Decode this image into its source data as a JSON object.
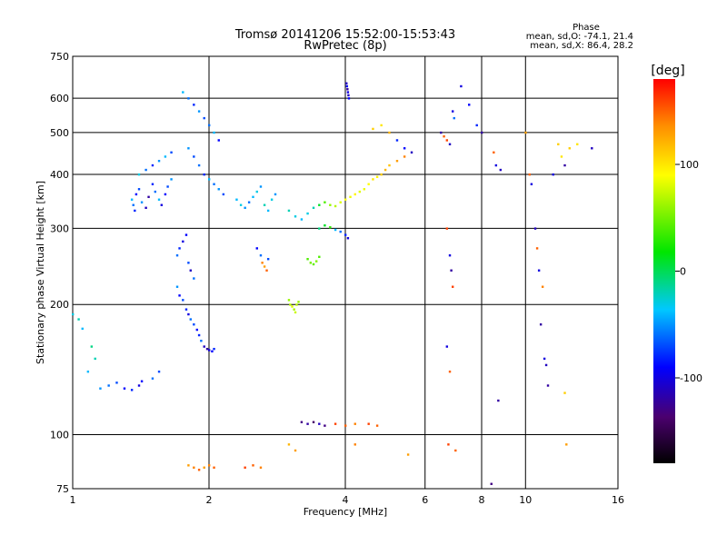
{
  "chart_data": {
    "type": "scatter",
    "title_line1": "Tromsø 20141206 15:52:00-15:53:43",
    "title_line2": "RwPretec (8p)",
    "xlabel": "Frequency [MHz]",
    "ylabel": "Stationary phase Virtual Height [km]",
    "x_scale": "log",
    "y_scale": "log",
    "xlim": [
      1,
      16
    ],
    "ylim": [
      75,
      750
    ],
    "x_ticks": [
      1,
      2,
      4,
      6,
      8,
      10,
      16
    ],
    "x_tick_labels": [
      "1",
      "2",
      "4",
      "6",
      "8",
      "10",
      "16"
    ],
    "y_ticks": [
      75,
      100,
      200,
      300,
      400,
      500,
      600,
      750
    ],
    "y_tick_labels": [
      "75",
      "100",
      "200",
      "300",
      "400",
      "500",
      "600",
      "750"
    ],
    "grid": true,
    "stats": {
      "title": "Phase",
      "line_o": "mean, sd,O: -74.1, 21.4",
      "line_x": "mean, sd,X:  86.4, 28.2"
    },
    "colorbar": {
      "label": "[deg]",
      "range": [
        -180,
        180
      ],
      "ticks": [
        100,
        0,
        -100
      ],
      "tick_labels": [
        "100",
        "0",
        "-100"
      ]
    },
    "series": [
      {
        "points": [
          [
            1.0,
            190,
            -30
          ],
          [
            1.03,
            185,
            -20
          ],
          [
            1.05,
            176,
            -40
          ],
          [
            1.1,
            160,
            -10
          ],
          [
            1.12,
            150,
            -20
          ],
          [
            1.08,
            140,
            -40
          ],
          [
            1.15,
            128,
            -50
          ],
          [
            1.2,
            130,
            -60
          ],
          [
            1.25,
            132,
            -70
          ],
          [
            1.3,
            128,
            -90
          ],
          [
            1.35,
            127,
            -80
          ],
          [
            1.4,
            130,
            -100
          ],
          [
            1.42,
            133,
            -90
          ],
          [
            1.5,
            135,
            -60
          ],
          [
            1.55,
            140,
            -70
          ]
        ]
      },
      {
        "points": [
          [
            1.35,
            350,
            -40
          ],
          [
            1.36,
            340,
            -60
          ],
          [
            1.37,
            330,
            -80
          ],
          [
            1.38,
            360,
            -90
          ],
          [
            1.4,
            370,
            -70
          ],
          [
            1.42,
            345,
            -50
          ],
          [
            1.45,
            335,
            -110
          ],
          [
            1.47,
            355,
            -120
          ],
          [
            1.5,
            380,
            -80
          ],
          [
            1.52,
            365,
            -60
          ],
          [
            1.55,
            350,
            -40
          ],
          [
            1.57,
            340,
            -100
          ],
          [
            1.6,
            360,
            -90
          ],
          [
            1.62,
            375,
            -70
          ],
          [
            1.65,
            390,
            -50
          ],
          [
            1.4,
            400,
            -30
          ],
          [
            1.45,
            410,
            -60
          ],
          [
            1.5,
            420,
            -80
          ],
          [
            1.55,
            430,
            -50
          ],
          [
            1.6,
            440,
            -40
          ],
          [
            1.65,
            450,
            -70
          ]
        ]
      },
      {
        "points": [
          [
            1.7,
            260,
            -60
          ],
          [
            1.72,
            270,
            -80
          ],
          [
            1.75,
            280,
            -100
          ],
          [
            1.78,
            290,
            -90
          ],
          [
            1.8,
            250,
            -70
          ],
          [
            1.82,
            240,
            -110
          ],
          [
            1.85,
            230,
            -60
          ],
          [
            1.7,
            220,
            -50
          ],
          [
            1.72,
            210,
            -90
          ],
          [
            1.75,
            205,
            -70
          ],
          [
            1.78,
            195,
            -80
          ],
          [
            1.8,
            190,
            -100
          ],
          [
            1.82,
            185,
            -60
          ],
          [
            1.85,
            180,
            -70
          ],
          [
            1.88,
            175,
            -90
          ],
          [
            1.9,
            170,
            -80
          ],
          [
            1.92,
            165,
            -60
          ],
          [
            1.95,
            160,
            -110
          ],
          [
            1.98,
            158,
            -120
          ],
          [
            2.0,
            157,
            -100
          ],
          [
            2.03,
            156,
            -90
          ],
          [
            2.05,
            158,
            -80
          ]
        ]
      },
      {
        "points": [
          [
            1.75,
            620,
            -40
          ],
          [
            1.8,
            600,
            -60
          ],
          [
            1.85,
            580,
            -80
          ],
          [
            1.9,
            560,
            -50
          ],
          [
            1.95,
            540,
            -70
          ],
          [
            2.0,
            520,
            -60
          ],
          [
            2.05,
            500,
            -40
          ],
          [
            2.1,
            480,
            -90
          ],
          [
            1.8,
            460,
            -50
          ],
          [
            1.85,
            440,
            -70
          ],
          [
            1.9,
            420,
            -60
          ],
          [
            1.95,
            400,
            -80
          ],
          [
            2.0,
            390,
            -40
          ],
          [
            2.05,
            380,
            -60
          ],
          [
            2.1,
            370,
            -50
          ],
          [
            2.15,
            360,
            -70
          ]
        ]
      },
      {
        "points": [
          [
            2.3,
            350,
            -40
          ],
          [
            2.35,
            340,
            -30
          ],
          [
            2.4,
            335,
            -50
          ],
          [
            2.45,
            345,
            -60
          ],
          [
            2.5,
            355,
            -40
          ],
          [
            2.55,
            365,
            -30
          ],
          [
            2.6,
            375,
            -50
          ],
          [
            2.65,
            340,
            -20
          ],
          [
            2.7,
            330,
            -40
          ],
          [
            2.75,
            350,
            -30
          ],
          [
            2.8,
            360,
            -50
          ]
        ]
      },
      {
        "points": [
          [
            2.55,
            270,
            -90
          ],
          [
            2.6,
            260,
            -60
          ],
          [
            2.62,
            250,
            140
          ],
          [
            2.65,
            245,
            130
          ],
          [
            2.68,
            240,
            150
          ],
          [
            2.7,
            255,
            -70
          ]
        ]
      },
      {
        "points": [
          [
            3.0,
            205,
            60
          ],
          [
            3.02,
            200,
            70
          ],
          [
            3.05,
            198,
            80
          ],
          [
            3.08,
            195,
            65
          ],
          [
            3.1,
            192,
            75
          ],
          [
            3.12,
            200,
            70
          ],
          [
            3.15,
            203,
            60
          ]
        ]
      },
      {
        "points": [
          [
            3.3,
            255,
            40
          ],
          [
            3.35,
            250,
            50
          ],
          [
            3.4,
            248,
            45
          ],
          [
            3.45,
            252,
            55
          ],
          [
            3.5,
            258,
            40
          ]
        ]
      },
      {
        "points": [
          [
            3.0,
            330,
            -20
          ],
          [
            3.1,
            320,
            -30
          ],
          [
            3.2,
            315,
            -40
          ],
          [
            3.3,
            325,
            -30
          ],
          [
            3.4,
            335,
            -20
          ],
          [
            3.5,
            340,
            10
          ],
          [
            3.6,
            345,
            40
          ],
          [
            3.7,
            340,
            60
          ],
          [
            3.8,
            338,
            70
          ],
          [
            3.9,
            345,
            80
          ],
          [
            4.0,
            350,
            90
          ],
          [
            4.1,
            355,
            85
          ],
          [
            4.2,
            360,
            95
          ],
          [
            4.3,
            365,
            80
          ],
          [
            4.4,
            370,
            85
          ],
          [
            4.5,
            380,
            90
          ],
          [
            4.6,
            390,
            100
          ],
          [
            4.7,
            395,
            95
          ],
          [
            4.8,
            400,
            110
          ],
          [
            4.9,
            410,
            120
          ],
          [
            5.0,
            420,
            115
          ],
          [
            5.2,
            430,
            130
          ],
          [
            5.4,
            440,
            140
          ]
        ]
      },
      {
        "points": [
          [
            3.5,
            300,
            -10
          ],
          [
            3.6,
            305,
            10
          ],
          [
            3.7,
            302,
            30
          ],
          [
            3.8,
            298,
            -40
          ],
          [
            3.9,
            295,
            -60
          ],
          [
            4.0,
            290,
            -80
          ],
          [
            4.05,
            285,
            -100
          ]
        ]
      },
      {
        "points": [
          [
            3.2,
            107,
            -130
          ],
          [
            3.3,
            106,
            -120
          ],
          [
            3.4,
            107,
            -140
          ],
          [
            3.5,
            106,
            -110
          ],
          [
            3.6,
            105,
            -130
          ],
          [
            3.8,
            106,
            160
          ],
          [
            4.0,
            105,
            150
          ],
          [
            4.2,
            106,
            140
          ],
          [
            4.5,
            106,
            160
          ],
          [
            4.7,
            105,
            150
          ]
        ]
      },
      {
        "points": [
          [
            4.02,
            650,
            -110
          ],
          [
            4.03,
            640,
            -90
          ],
          [
            4.04,
            630,
            -120
          ],
          [
            4.05,
            620,
            -100
          ],
          [
            4.06,
            610,
            -110
          ],
          [
            4.07,
            600,
            -90
          ]
        ]
      },
      {
        "points": [
          [
            4.6,
            510,
            110
          ],
          [
            4.8,
            520,
            100
          ],
          [
            5.0,
            500,
            120
          ],
          [
            5.2,
            480,
            -80
          ],
          [
            5.4,
            460,
            -90
          ],
          [
            5.6,
            450,
            -110
          ]
        ]
      },
      {
        "points": [
          [
            6.5,
            500,
            -120
          ],
          [
            6.6,
            490,
            150
          ],
          [
            6.7,
            480,
            160
          ],
          [
            6.8,
            470,
            -110
          ],
          [
            6.9,
            560,
            -100
          ],
          [
            6.95,
            540,
            -60
          ],
          [
            6.7,
            300,
            160
          ],
          [
            6.8,
            260,
            -100
          ],
          [
            6.85,
            240,
            -120
          ],
          [
            6.9,
            220,
            160
          ],
          [
            6.7,
            160,
            -100
          ],
          [
            6.8,
            140,
            150
          ],
          [
            6.75,
            95,
            160
          ]
        ]
      },
      {
        "points": [
          [
            7.2,
            640,
            -100
          ],
          [
            7.5,
            580,
            -90
          ],
          [
            7.8,
            520,
            -80
          ],
          [
            8.0,
            500,
            -120
          ],
          [
            8.5,
            450,
            150
          ],
          [
            8.6,
            420,
            -100
          ],
          [
            8.8,
            410,
            -110
          ],
          [
            8.7,
            120,
            -120
          ],
          [
            8.4,
            77,
            -130
          ]
        ]
      },
      {
        "points": [
          [
            10.0,
            500,
            130
          ],
          [
            10.2,
            400,
            150
          ],
          [
            10.3,
            380,
            -100
          ],
          [
            10.5,
            300,
            -110
          ],
          [
            10.6,
            270,
            150
          ],
          [
            10.7,
            240,
            -100
          ],
          [
            10.9,
            220,
            140
          ],
          [
            10.8,
            180,
            -120
          ],
          [
            11.0,
            150,
            -100
          ],
          [
            11.1,
            145,
            -110
          ],
          [
            11.2,
            130,
            -120
          ]
        ]
      },
      {
        "points": [
          [
            11.5,
            400,
            -100
          ],
          [
            11.8,
            470,
            110
          ],
          [
            12.0,
            440,
            100
          ],
          [
            12.2,
            420,
            -120
          ],
          [
            12.5,
            460,
            110
          ],
          [
            13.0,
            470,
            100
          ],
          [
            14.0,
            460,
            -110
          ],
          [
            12.2,
            125,
            110
          ],
          [
            12.3,
            95,
            130
          ]
        ]
      },
      {
        "points": [
          [
            1.8,
            85,
            130
          ],
          [
            1.85,
            84,
            140
          ],
          [
            1.9,
            83,
            150
          ],
          [
            1.95,
            84,
            130
          ],
          [
            2.0,
            85,
            140
          ],
          [
            2.05,
            84,
            150
          ],
          [
            2.4,
            84,
            160
          ],
          [
            2.5,
            85,
            150
          ],
          [
            2.6,
            84,
            140
          ],
          [
            3.0,
            95,
            120
          ],
          [
            3.1,
            92,
            130
          ],
          [
            4.2,
            95,
            140
          ],
          [
            5.5,
            90,
            130
          ],
          [
            7.0,
            92,
            150
          ]
        ]
      }
    ]
  }
}
